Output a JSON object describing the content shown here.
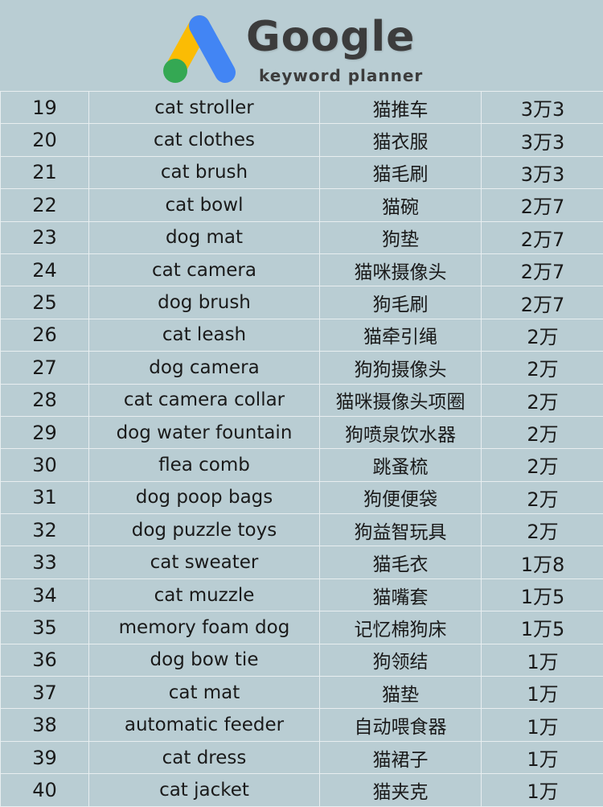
{
  "header": {
    "brand": "Google",
    "subtitle": "keyword planner",
    "logo_colors": {
      "yellow": "#fbbc04",
      "blue": "#4285f4",
      "green": "#34a853"
    }
  },
  "rows": [
    {
      "rank": "19",
      "en": "cat stroller",
      "cn": "猫推车",
      "volume": "3万3"
    },
    {
      "rank": "20",
      "en": "cat clothes",
      "cn": "猫衣服",
      "volume": "3万3"
    },
    {
      "rank": "21",
      "en": "cat brush",
      "cn": "猫毛刷",
      "volume": "3万3"
    },
    {
      "rank": "22",
      "en": "cat bowl",
      "cn": "猫碗",
      "volume": "2万7"
    },
    {
      "rank": "23",
      "en": "dog mat",
      "cn": "狗垫",
      "volume": "2万7"
    },
    {
      "rank": "24",
      "en": "cat camera",
      "cn": "猫咪摄像头",
      "volume": "2万7"
    },
    {
      "rank": "25",
      "en": "dog brush",
      "cn": "狗毛刷",
      "volume": "2万7"
    },
    {
      "rank": "26",
      "en": "cat leash",
      "cn": "猫牵引绳",
      "volume": "2万"
    },
    {
      "rank": "27",
      "en": "dog camera",
      "cn": "狗狗摄像头",
      "volume": "2万"
    },
    {
      "rank": "28",
      "en": "cat camera collar",
      "cn": "猫咪摄像头项圈",
      "volume": "2万"
    },
    {
      "rank": "29",
      "en": "dog water fountain",
      "cn": "狗喷泉饮水器",
      "volume": "2万"
    },
    {
      "rank": "30",
      "en": "flea comb",
      "cn": "跳蚤梳",
      "volume": "2万"
    },
    {
      "rank": "31",
      "en": "dog poop bags",
      "cn": "狗便便袋",
      "volume": "2万"
    },
    {
      "rank": "32",
      "en": "dog puzzle toys",
      "cn": "狗益智玩具",
      "volume": "2万"
    },
    {
      "rank": "33",
      "en": "cat sweater",
      "cn": "猫毛衣",
      "volume": "1万8"
    },
    {
      "rank": "34",
      "en": "cat muzzle",
      "cn": "猫嘴套",
      "volume": "1万5"
    },
    {
      "rank": "35",
      "en": "memory foam dog",
      "cn": "记忆棉狗床",
      "volume": "1万5"
    },
    {
      "rank": "36",
      "en": "dog bow tie",
      "cn": "狗领结",
      "volume": "1万"
    },
    {
      "rank": "37",
      "en": "cat mat",
      "cn": "猫垫",
      "volume": "1万"
    },
    {
      "rank": "38",
      "en": "automatic feeder",
      "cn": "自动喂食器",
      "volume": "1万"
    },
    {
      "rank": "39",
      "en": "cat dress",
      "cn": "猫裙子",
      "volume": "1万"
    },
    {
      "rank": "40",
      "en": "cat jacket",
      "cn": "猫夹克",
      "volume": "1万"
    }
  ]
}
